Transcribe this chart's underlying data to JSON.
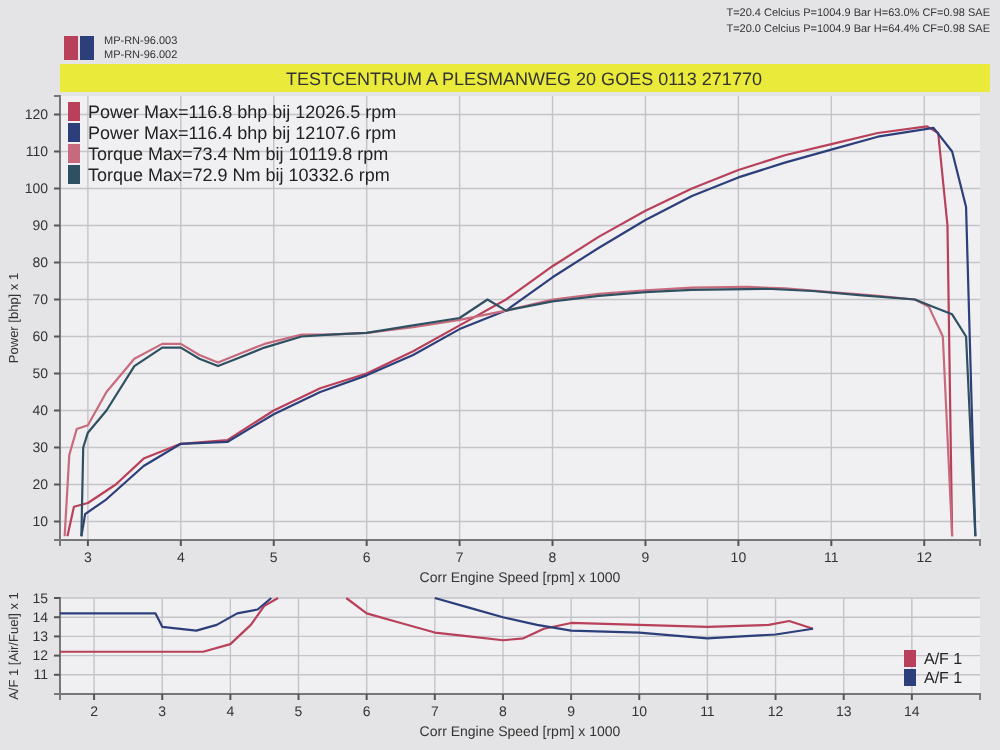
{
  "chart_data": [
    {
      "type": "line",
      "title": "TESTCENTRUM A PLESMANWEG 20 GOES 0113 271770",
      "annotations": [
        "MP-RN-96.003",
        "MP-RN-96.002",
        "T=20.4 Celcius    P=1004.9 Bar    H=63.0% CF=0.98 SAE",
        "T=20.0 Celcius    P=1004.9 Bar    H=64.4% CF=0.98 SAE"
      ],
      "xlabel": "Corr Engine Speed [rpm] x 1000",
      "ylabel": "Power [bhp] x 1",
      "xlim": [
        2.7,
        12.6
      ],
      "xticks": [
        3,
        4,
        5,
        6,
        7,
        8,
        9,
        10,
        11,
        12
      ],
      "ylim": [
        5,
        125
      ],
      "yticks": [
        10,
        20,
        30,
        40,
        50,
        60,
        70,
        80,
        90,
        100,
        110,
        120
      ],
      "grid": true,
      "legend": "top left",
      "series": [
        {
          "name": "Power  Max=116.8 bhp bij 12026.5 rpm",
          "color": "#b8405a",
          "x": [
            2.78,
            2.85,
            3.0,
            3.3,
            3.6,
            4.0,
            4.5,
            5.0,
            5.5,
            6.0,
            6.5,
            7.0,
            7.5,
            8.0,
            8.5,
            9.0,
            9.5,
            10.0,
            10.5,
            11.0,
            11.5,
            12.03,
            12.15,
            12.25,
            12.3
          ],
          "values": [
            6,
            14,
            15,
            20,
            27,
            31,
            32,
            40,
            46,
            50,
            56,
            63,
            70,
            79,
            87,
            94,
            100,
            105,
            109,
            112,
            115,
            116.8,
            115,
            90,
            6
          ]
        },
        {
          "name": "Power  Max=116.4 bhp bij 12107.6 rpm",
          "color": "#2c3f7a",
          "x": [
            2.93,
            2.97,
            3.2,
            3.6,
            4.0,
            4.5,
            5.0,
            5.5,
            6.0,
            6.5,
            7.0,
            7.5,
            8.0,
            8.5,
            9.0,
            9.5,
            10.0,
            10.5,
            11.0,
            11.5,
            12.1,
            12.3,
            12.45,
            12.55
          ],
          "values": [
            6,
            12,
            16,
            25,
            31,
            31.5,
            39,
            45,
            49.5,
            55,
            62,
            67,
            76,
            84,
            91.5,
            98,
            103,
            107,
            110.5,
            114,
            116.4,
            110,
            95,
            6
          ]
        },
        {
          "name": "Torque  Max=73.4 Nm bij 10119.8 rpm",
          "color": "#c86a7e",
          "x": [
            2.75,
            2.8,
            2.88,
            3.0,
            3.2,
            3.5,
            3.8,
            4.0,
            4.2,
            4.4,
            4.6,
            4.9,
            5.3,
            5.6,
            6.0,
            6.5,
            7.0,
            7.5,
            8.0,
            8.5,
            9.0,
            9.5,
            10.1,
            10.5,
            11.0,
            11.5,
            11.9,
            12.05,
            12.2,
            12.3
          ],
          "values": [
            6,
            28,
            35,
            36,
            45,
            54,
            58,
            58,
            55,
            53,
            55,
            58,
            60.5,
            60.5,
            61,
            62.5,
            64.5,
            67,
            70,
            71.5,
            72.5,
            73.2,
            73.4,
            73,
            72,
            71,
            70,
            68,
            60,
            6
          ]
        },
        {
          "name": "Torque  Max=72.9 Nm bij 10332.6 rpm",
          "color": "#2f5060",
          "x": [
            2.93,
            2.95,
            3.0,
            3.2,
            3.5,
            3.8,
            4.0,
            4.2,
            4.4,
            4.6,
            4.9,
            5.3,
            5.6,
            6.0,
            6.5,
            7.0,
            7.3,
            7.5,
            8.0,
            8.5,
            9.0,
            9.5,
            10.3,
            10.8,
            11.3,
            11.9,
            12.1,
            12.3,
            12.45,
            12.55
          ],
          "values": [
            6,
            30,
            34,
            40,
            52,
            57,
            57,
            54,
            52,
            54,
            57,
            60,
            60.5,
            61,
            63,
            65,
            70,
            67,
            69.5,
            71,
            72,
            72.6,
            72.9,
            72.3,
            71.2,
            70,
            68,
            66,
            60,
            6
          ]
        }
      ]
    },
    {
      "type": "line",
      "xlabel": "Corr Engine Speed [rpm] x 1000",
      "ylabel": "A/F 1 [Air/Fuel] x 1",
      "xlim": [
        1.5,
        15
      ],
      "xticks": [
        2,
        3,
        4,
        5,
        6,
        7,
        8,
        9,
        10,
        11,
        12,
        13,
        14
      ],
      "ylim": [
        10,
        15
      ],
      "yticks": [
        11,
        12,
        13,
        14,
        15
      ],
      "grid": true,
      "legend": "bottom right",
      "series": [
        {
          "name": "A/F 1",
          "color": "#b8405a",
          "x": [
            1.5,
            3.0,
            3.6,
            4.0,
            4.3,
            4.5,
            4.7,
            5.0,
            5.7,
            6.0,
            6.5,
            7.0,
            7.5,
            8.0,
            8.3,
            8.6,
            9.0,
            10.0,
            11.0,
            11.9,
            12.2,
            12.55
          ],
          "values": [
            12.2,
            12.2,
            12.2,
            12.6,
            13.6,
            14.6,
            15,
            null,
            15,
            14.2,
            13.7,
            13.2,
            13.0,
            12.8,
            12.9,
            13.4,
            13.7,
            13.6,
            13.5,
            13.6,
            13.8,
            13.4
          ]
        },
        {
          "name": "A/F 1",
          "color": "#2c3f7a",
          "x": [
            1.5,
            2.9,
            3.0,
            3.5,
            3.8,
            4.1,
            4.4,
            4.6,
            5.5,
            7.0,
            7.5,
            8.0,
            8.5,
            9.0,
            10.0,
            11.0,
            11.5,
            12.0,
            12.55
          ],
          "values": [
            14.2,
            14.2,
            13.5,
            13.3,
            13.6,
            14.2,
            14.4,
            15,
            null,
            15,
            14.5,
            14.0,
            13.6,
            13.3,
            13.2,
            12.9,
            13.0,
            13.1,
            13.4
          ]
        }
      ]
    }
  ]
}
